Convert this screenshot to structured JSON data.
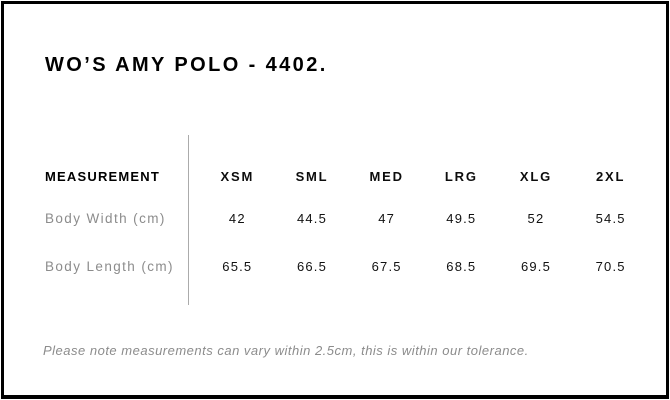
{
  "page": {
    "title": "WO’S AMY POLO - 4402."
  },
  "size_chart": {
    "header": {
      "measurement_label": "MEASUREMENT",
      "sizes": [
        "XSM",
        "SML",
        "MED",
        "LRG",
        "XLG",
        "2XL"
      ]
    },
    "rows": [
      {
        "label": "Body Width (cm)",
        "values": [
          "42",
          "44.5",
          "47",
          "49.5",
          "52",
          "54.5"
        ]
      },
      {
        "label": "Body Length (cm)",
        "values": [
          "65.5",
          "66.5",
          "67.5",
          "68.5",
          "69.5",
          "70.5"
        ]
      }
    ],
    "footnote": "Please note measurements can vary within 2.5cm, this is within our tolerance."
  },
  "colors": {
    "background": "#ffffff",
    "border": "#000000",
    "heading_text": "#000000",
    "value_text": "#111111",
    "muted_text": "#8c8c8c",
    "divider": "#ababab"
  }
}
